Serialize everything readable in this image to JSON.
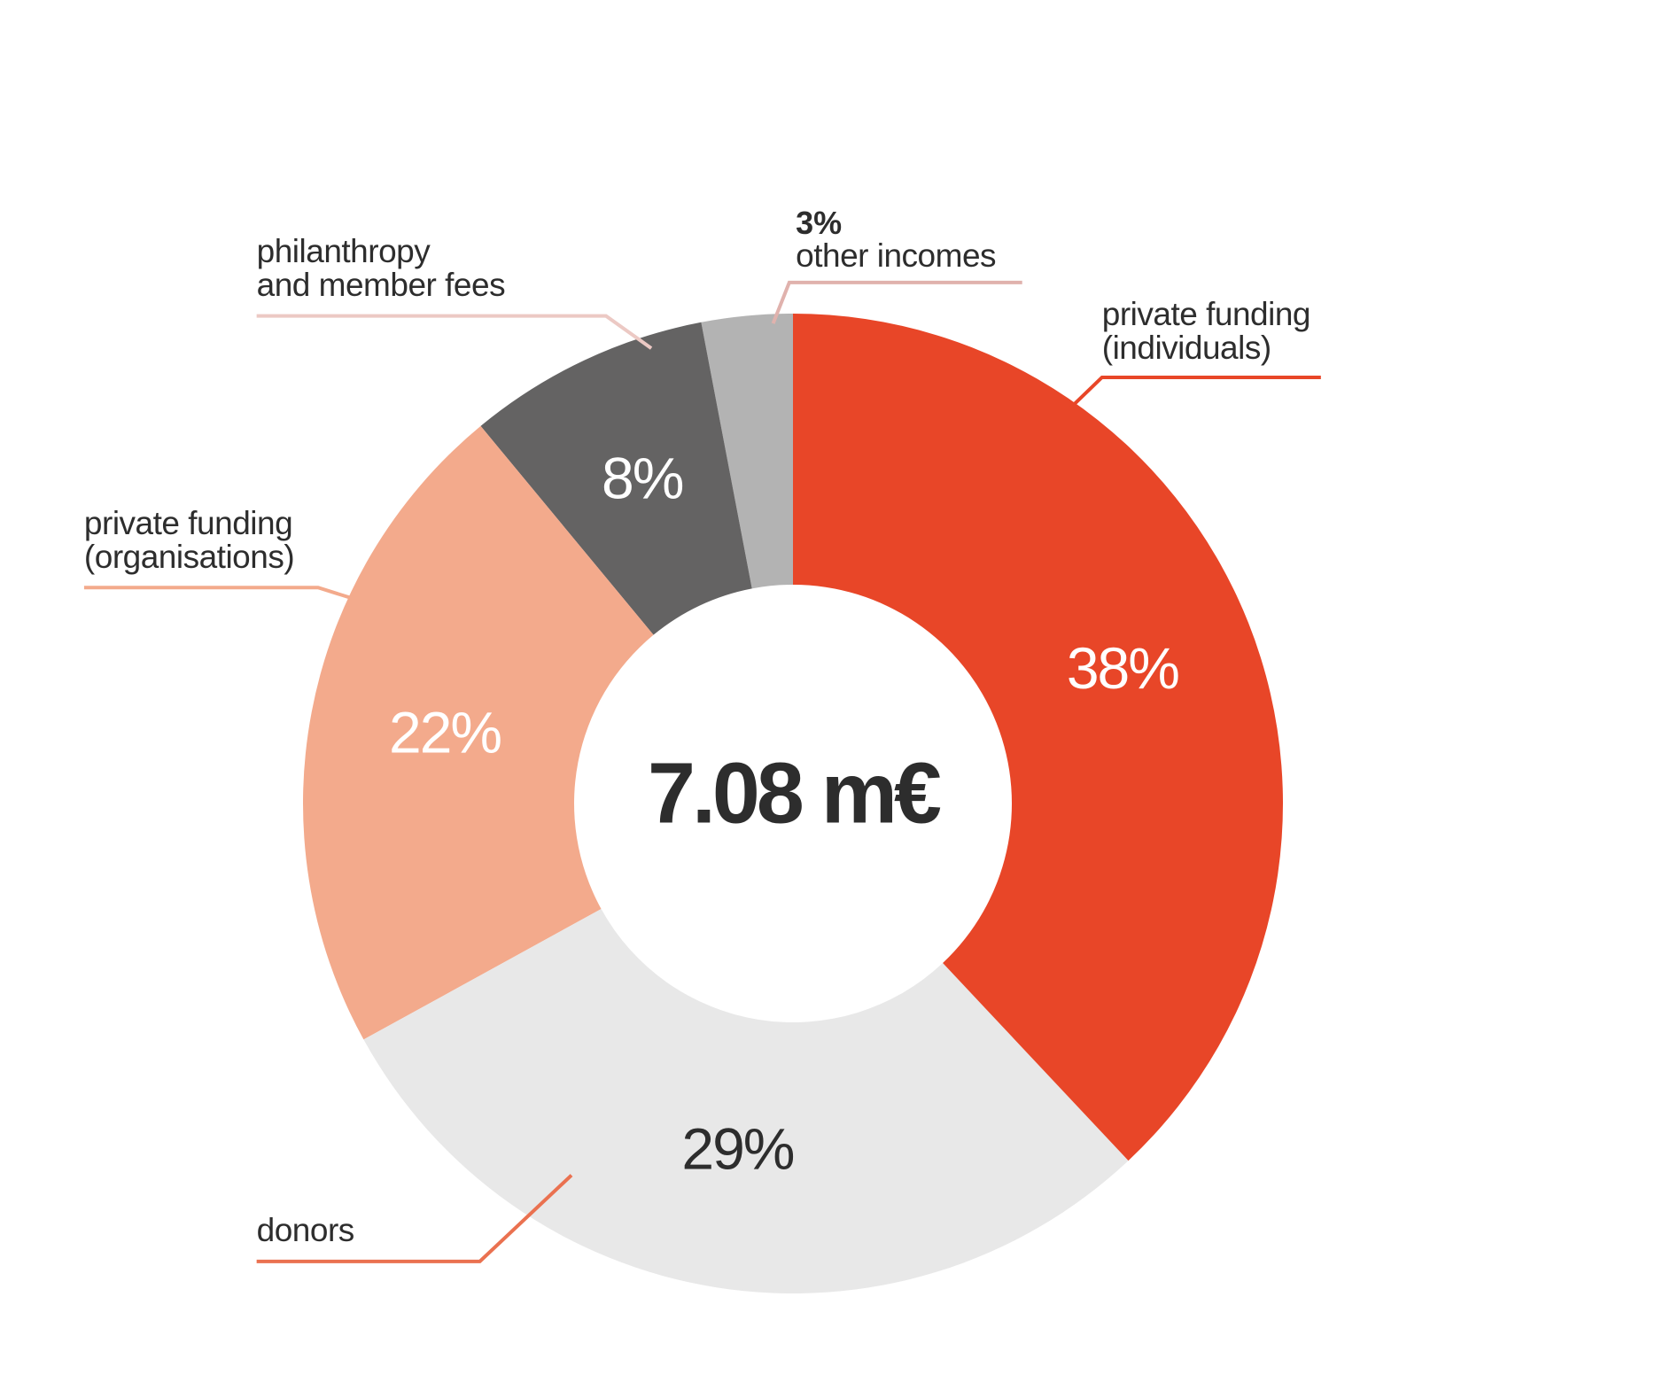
{
  "chart_data": {
    "type": "donut",
    "center_label": "7.08 m€",
    "categories": [
      "private funding\n(individuals)",
      "donors",
      "private funding\n(organisations)",
      "philanthropy\nand member fees",
      "other incomes"
    ],
    "values": [
      38,
      29,
      22,
      8,
      3
    ],
    "value_labels": [
      "38%",
      "29%",
      "22%",
      "8%",
      "3%"
    ],
    "colors": [
      "#e84628",
      "#e8e8e8",
      "#f3aa8c",
      "#646363",
      "#b3b3b3"
    ]
  }
}
